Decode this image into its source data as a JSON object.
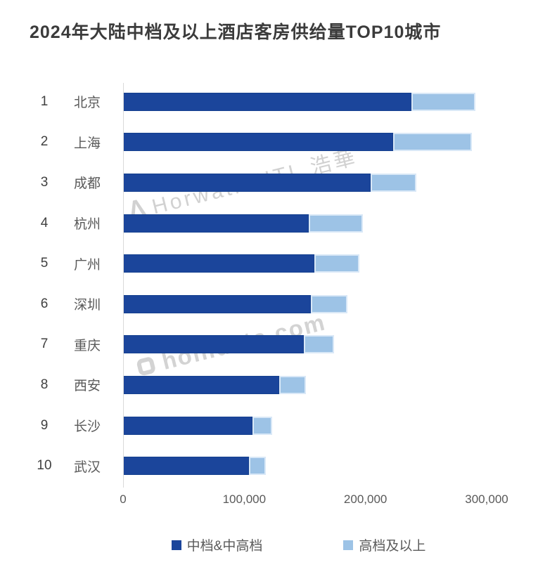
{
  "watermarks": {
    "top": "Horwath HTL 浩華",
    "bottom": "hohidata.com"
  },
  "icons": {
    "horwath_logo": "Λ"
  },
  "chart_data": {
    "type": "bar",
    "orientation": "horizontal-stacked",
    "title": "2024年大陆中档及以上酒店客房供给量TOP10城市",
    "categories": [
      {
        "rank": "1",
        "city": "北京"
      },
      {
        "rank": "2",
        "city": "上海"
      },
      {
        "rank": "3",
        "city": "成都"
      },
      {
        "rank": "4",
        "city": "杭州"
      },
      {
        "rank": "5",
        "city": "广州"
      },
      {
        "rank": "6",
        "city": "深圳"
      },
      {
        "rank": "7",
        "city": "重庆"
      },
      {
        "rank": "8",
        "city": "西安"
      },
      {
        "rank": "9",
        "city": "长沙"
      },
      {
        "rank": "10",
        "city": "武汉"
      }
    ],
    "series": [
      {
        "name": "中档&中高档",
        "color": "#1b459b",
        "values": [
          238000,
          223000,
          204000,
          153000,
          158000,
          155000,
          149000,
          129000,
          107000,
          104000
        ]
      },
      {
        "name": "高档及以上",
        "color": "#9dc3e6",
        "values": [
          53000,
          65000,
          38000,
          45000,
          37000,
          30000,
          25000,
          22000,
          16000,
          14000
        ]
      }
    ],
    "totals": [
      291000,
      288000,
      242000,
      198000,
      195000,
      185000,
      174000,
      151000,
      123000,
      118000
    ],
    "x_axis": {
      "ticks": [
        "0",
        "100,000",
        "200,000",
        "300,000"
      ],
      "max": 300000
    },
    "ylabel": "",
    "xlabel": "",
    "grid": false,
    "legend_position": "bottom"
  }
}
